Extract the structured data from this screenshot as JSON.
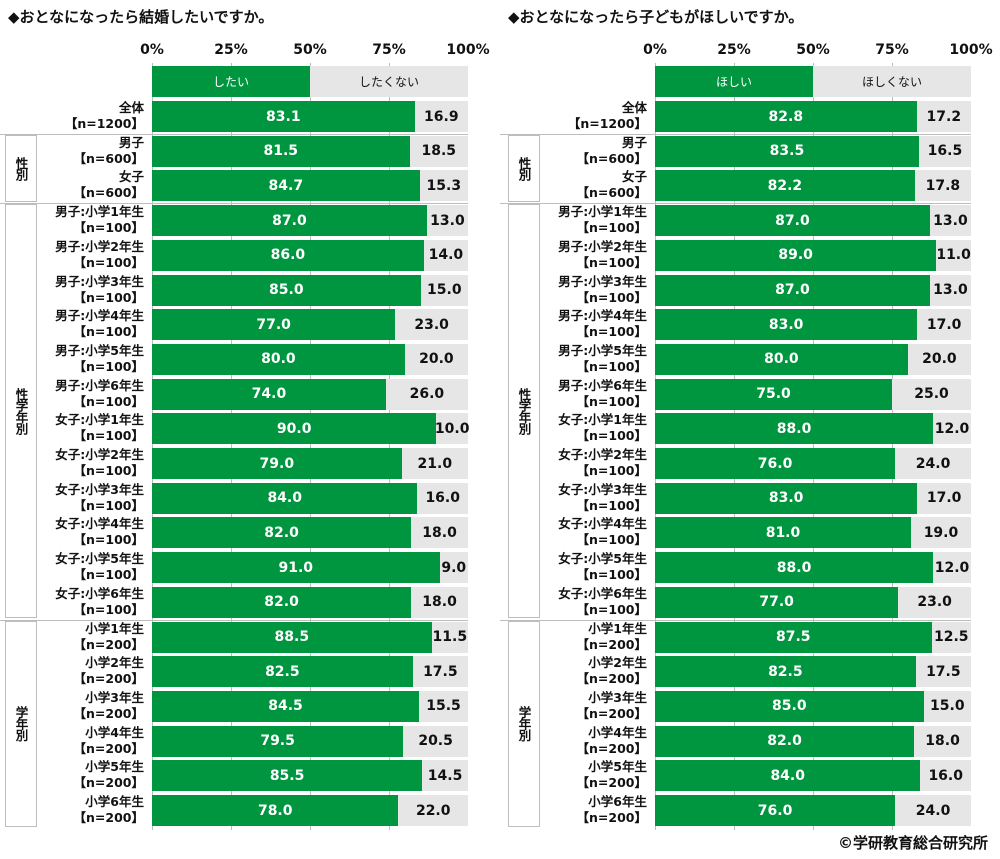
{
  "chart_data": [
    {
      "type": "bar",
      "stacked": true,
      "orientation": "horizontal",
      "title": "◆おとなになったら結婚したいですか。",
      "xlim": [
        0,
        100
      ],
      "ticks": [
        "0%",
        "25%",
        "50%",
        "75%",
        "100%"
      ],
      "legend": [
        "したい",
        "したくない"
      ],
      "categories": [
        {
          "name": "全体",
          "n": "【n=1200】",
          "group": ""
        },
        {
          "name": "男子",
          "n": "【n=600】",
          "group": "性別"
        },
        {
          "name": "女子",
          "n": "【n=600】",
          "group": "性別"
        },
        {
          "name": "男子:小学1年生",
          "n": "【n=100】",
          "group": "性学年別"
        },
        {
          "name": "男子:小学2年生",
          "n": "【n=100】",
          "group": "性学年別"
        },
        {
          "name": "男子:小学3年生",
          "n": "【n=100】",
          "group": "性学年別"
        },
        {
          "name": "男子:小学4年生",
          "n": "【n=100】",
          "group": "性学年別"
        },
        {
          "name": "男子:小学5年生",
          "n": "【n=100】",
          "group": "性学年別"
        },
        {
          "name": "男子:小学6年生",
          "n": "【n=100】",
          "group": "性学年別"
        },
        {
          "name": "女子:小学1年生",
          "n": "【n=100】",
          "group": "性学年別"
        },
        {
          "name": "女子:小学2年生",
          "n": "【n=100】",
          "group": "性学年別"
        },
        {
          "name": "女子:小学3年生",
          "n": "【n=100】",
          "group": "性学年別"
        },
        {
          "name": "女子:小学4年生",
          "n": "【n=100】",
          "group": "性学年別"
        },
        {
          "name": "女子:小学5年生",
          "n": "【n=100】",
          "group": "性学年別"
        },
        {
          "name": "女子:小学6年生",
          "n": "【n=100】",
          "group": "性学年別"
        },
        {
          "name": "小学1年生",
          "n": "【n=200】",
          "group": "学年別"
        },
        {
          "name": "小学2年生",
          "n": "【n=200】",
          "group": "学年別"
        },
        {
          "name": "小学3年生",
          "n": "【n=200】",
          "group": "学年別"
        },
        {
          "name": "小学4年生",
          "n": "【n=200】",
          "group": "学年別"
        },
        {
          "name": "小学5年生",
          "n": "【n=200】",
          "group": "学年別"
        },
        {
          "name": "小学6年生",
          "n": "【n=200】",
          "group": "学年別"
        }
      ],
      "series": [
        {
          "name": "したい",
          "color": "#009640",
          "values": [
            "83.1",
            "81.5",
            "84.7",
            "87.0",
            "86.0",
            "85.0",
            "77.0",
            "80.0",
            "74.0",
            "90.0",
            "79.0",
            "84.0",
            "82.0",
            "91.0",
            "82.0",
            "88.5",
            "82.5",
            "84.5",
            "79.5",
            "85.5",
            "78.0"
          ]
        },
        {
          "name": "したくない",
          "color": "#e6e6e6",
          "values": [
            "16.9",
            "18.5",
            "15.3",
            "13.0",
            "14.0",
            "15.0",
            "23.0",
            "20.0",
            "26.0",
            "10.0",
            "21.0",
            "16.0",
            "18.0",
            "9.0",
            "18.0",
            "11.5",
            "17.5",
            "15.5",
            "20.5",
            "14.5",
            "22.0"
          ]
        }
      ]
    },
    {
      "type": "bar",
      "stacked": true,
      "orientation": "horizontal",
      "title": "◆おとなになったら子どもがほしいですか。",
      "xlim": [
        0,
        100
      ],
      "ticks": [
        "0%",
        "25%",
        "50%",
        "75%",
        "100%"
      ],
      "legend": [
        "ほしい",
        "ほしくない"
      ],
      "categories": [
        {
          "name": "全体",
          "n": "【n=1200】",
          "group": ""
        },
        {
          "name": "男子",
          "n": "【n=600】",
          "group": "性別"
        },
        {
          "name": "女子",
          "n": "【n=600】",
          "group": "性別"
        },
        {
          "name": "男子:小学1年生",
          "n": "【n=100】",
          "group": "性学年別"
        },
        {
          "name": "男子:小学2年生",
          "n": "【n=100】",
          "group": "性学年別"
        },
        {
          "name": "男子:小学3年生",
          "n": "【n=100】",
          "group": "性学年別"
        },
        {
          "name": "男子:小学4年生",
          "n": "【n=100】",
          "group": "性学年別"
        },
        {
          "name": "男子:小学5年生",
          "n": "【n=100】",
          "group": "性学年別"
        },
        {
          "name": "男子:小学6年生",
          "n": "【n=100】",
          "group": "性学年別"
        },
        {
          "name": "女子:小学1年生",
          "n": "【n=100】",
          "group": "性学年別"
        },
        {
          "name": "女子:小学2年生",
          "n": "【n=100】",
          "group": "性学年別"
        },
        {
          "name": "女子:小学3年生",
          "n": "【n=100】",
          "group": "性学年別"
        },
        {
          "name": "女子:小学4年生",
          "n": "【n=100】",
          "group": "性学年別"
        },
        {
          "name": "女子:小学5年生",
          "n": "【n=100】",
          "group": "性学年別"
        },
        {
          "name": "女子:小学6年生",
          "n": "【n=100】",
          "group": "性学年別"
        },
        {
          "name": "小学1年生",
          "n": "【n=200】",
          "group": "学年別"
        },
        {
          "name": "小学2年生",
          "n": "【n=200】",
          "group": "学年別"
        },
        {
          "name": "小学3年生",
          "n": "【n=200】",
          "group": "学年別"
        },
        {
          "name": "小学4年生",
          "n": "【n=200】",
          "group": "学年別"
        },
        {
          "name": "小学5年生",
          "n": "【n=200】",
          "group": "学年別"
        },
        {
          "name": "小学6年生",
          "n": "【n=200】",
          "group": "学年別"
        }
      ],
      "series": [
        {
          "name": "ほしい",
          "color": "#009640",
          "values": [
            "82.8",
            "83.5",
            "82.2",
            "87.0",
            "89.0",
            "87.0",
            "83.0",
            "80.0",
            "75.0",
            "88.0",
            "76.0",
            "83.0",
            "81.0",
            "88.0",
            "77.0",
            "87.5",
            "82.5",
            "85.0",
            "82.0",
            "84.0",
            "76.0"
          ]
        },
        {
          "name": "ほしくない",
          "color": "#e6e6e6",
          "values": [
            "17.2",
            "16.5",
            "17.8",
            "13.0",
            "11.0",
            "13.0",
            "17.0",
            "20.0",
            "25.0",
            "12.0",
            "24.0",
            "17.0",
            "19.0",
            "12.0",
            "23.0",
            "12.5",
            "17.5",
            "15.0",
            "18.0",
            "16.0",
            "24.0"
          ]
        }
      ]
    }
  ],
  "groups": [
    "性別",
    "性学年別",
    "学年別"
  ],
  "copyright": "©学研教育総合研究所"
}
